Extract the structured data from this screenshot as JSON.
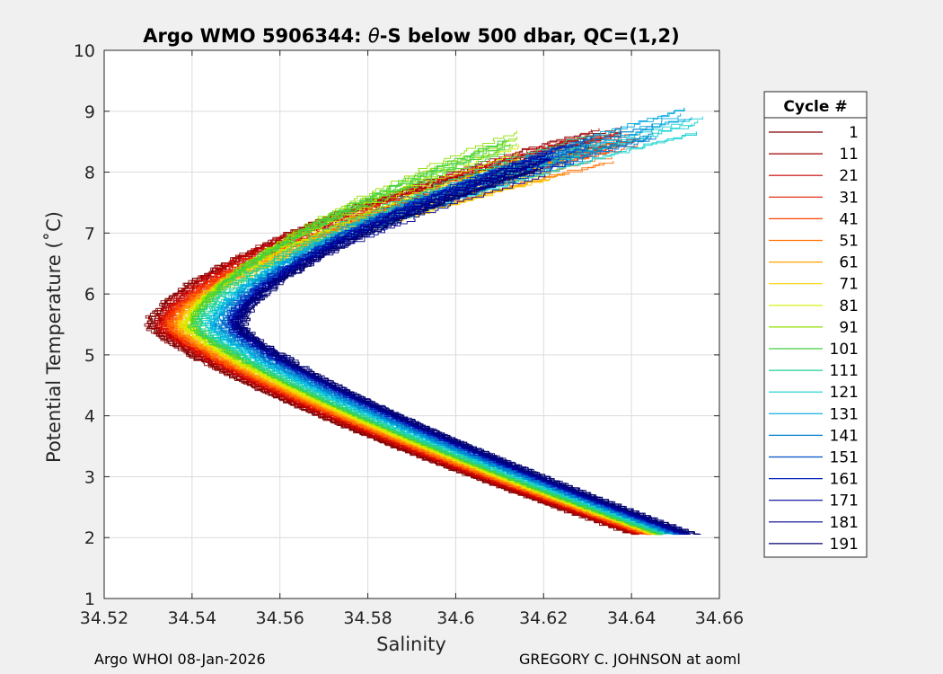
{
  "chart_data": {
    "type": "line",
    "title_prefix": "Argo WMO 5906344: ",
    "title_theta": "θ",
    "title_suffix": "-S below 500 dbar,  QC=(1,2)",
    "xlabel": "Salinity",
    "ylabel": "Potential Temperature (˚C)",
    "xlim": [
      34.52,
      34.66
    ],
    "ylim": [
      1,
      10
    ],
    "xticks": [
      34.52,
      34.54,
      34.56,
      34.58,
      34.6,
      34.62,
      34.64,
      34.66
    ],
    "xtick_labels": [
      "34.52",
      "34.54",
      "34.56",
      "34.58",
      "34.6",
      "34.62",
      "34.64",
      "34.66"
    ],
    "yticks": [
      1,
      2,
      3,
      4,
      5,
      6,
      7,
      8,
      9,
      10
    ],
    "ytick_labels": [
      "1",
      "2",
      "3",
      "4",
      "5",
      "6",
      "7",
      "8",
      "9",
      "10"
    ],
    "grid": true,
    "legend_title": "Cycle #",
    "legend_position": "right",
    "series": [
      {
        "name": "1",
        "color": "#800000",
        "s_deep": 34.641,
        "s_min": 34.53,
        "s_top": 34.638,
        "t_top": 8.8
      },
      {
        "name": "11",
        "color": "#9c0000",
        "s_deep": 34.642,
        "s_min": 34.532,
        "s_top": 34.632,
        "t_top": 8.75
      },
      {
        "name": "21",
        "color": "#c80000",
        "s_deep": 34.643,
        "s_min": 34.533,
        "s_top": 34.628,
        "t_top": 8.6
      },
      {
        "name": "31",
        "color": "#e41a00",
        "s_deep": 34.644,
        "s_min": 34.534,
        "s_top": 34.637,
        "t_top": 8.7
      },
      {
        "name": "41",
        "color": "#ff4000",
        "s_deep": 34.645,
        "s_min": 34.535,
        "s_top": 34.642,
        "t_top": 8.75
      },
      {
        "name": "51",
        "color": "#ff7000",
        "s_deep": 34.645,
        "s_min": 34.536,
        "s_top": 34.635,
        "t_top": 8.5
      },
      {
        "name": "61",
        "color": "#ffa000",
        "s_deep": 34.646,
        "s_min": 34.537,
        "s_top": 34.625,
        "t_top": 8.3
      },
      {
        "name": "71",
        "color": "#ffd000",
        "s_deep": 34.646,
        "s_min": 34.538,
        "s_top": 34.62,
        "t_top": 8.2
      },
      {
        "name": "81",
        "color": "#d0f000",
        "s_deep": 34.647,
        "s_min": 34.539,
        "s_top": 34.615,
        "t_top": 8.5
      },
      {
        "name": "91",
        "color": "#90e000",
        "s_deep": 34.647,
        "s_min": 34.54,
        "s_top": 34.613,
        "t_top": 8.7
      },
      {
        "name": "101",
        "color": "#40d040",
        "s_deep": 34.648,
        "s_min": 34.541,
        "s_top": 34.612,
        "t_top": 8.6
      },
      {
        "name": "111",
        "color": "#20d090",
        "s_deep": 34.649,
        "s_min": 34.542,
        "s_top": 34.63,
        "t_top": 8.7
      },
      {
        "name": "121",
        "color": "#10d0d0",
        "s_deep": 34.65,
        "s_min": 34.544,
        "s_top": 34.655,
        "t_top": 8.98
      },
      {
        "name": "131",
        "color": "#00a8e0",
        "s_deep": 34.651,
        "s_min": 34.545,
        "s_top": 34.652,
        "t_top": 9.08
      },
      {
        "name": "141",
        "color": "#0080d0",
        "s_deep": 34.651,
        "s_min": 34.547,
        "s_top": 34.645,
        "t_top": 8.9
      },
      {
        "name": "151",
        "color": "#0050c8",
        "s_deep": 34.652,
        "s_min": 34.548,
        "s_top": 34.63,
        "t_top": 8.6
      },
      {
        "name": "161",
        "color": "#0020b8",
        "s_deep": 34.653,
        "s_min": 34.549,
        "s_top": 34.625,
        "t_top": 8.5
      },
      {
        "name": "171",
        "color": "#0000a0",
        "s_deep": 34.653,
        "s_min": 34.55,
        "s_top": 34.622,
        "t_top": 8.4
      },
      {
        "name": "181",
        "color": "#000090",
        "s_deep": 34.654,
        "s_min": 34.55,
        "s_top": 34.62,
        "t_top": 8.3
      },
      {
        "name": "191",
        "color": "#000070",
        "s_deep": 34.655,
        "s_min": 34.551,
        "s_top": 34.618,
        "t_top": 8.2
      }
    ]
  },
  "footer": {
    "left": "Argo WHOI 08-Jan-2026",
    "right": "GREGORY C. JOHNSON at aoml"
  }
}
